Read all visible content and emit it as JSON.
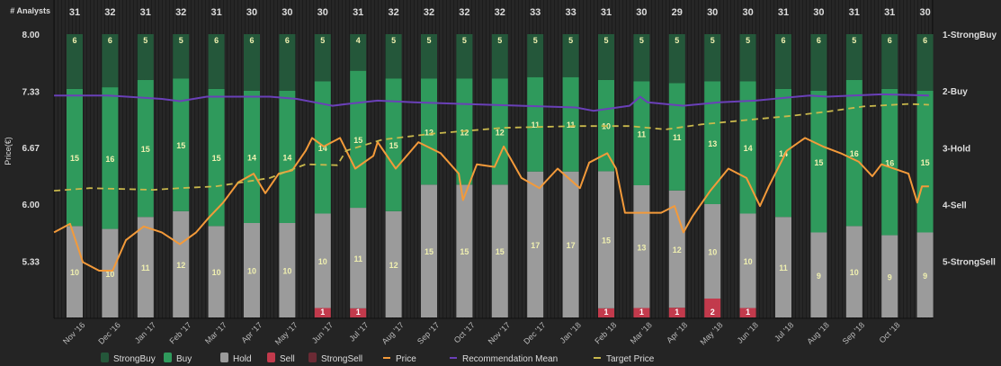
{
  "chart_data": {
    "type": "bar",
    "stacked": true,
    "title": "",
    "count_label": "# Analysts",
    "ylabel": "Price(€)",
    "ylim": [
      4.67,
      8.0
    ],
    "y_ticks": [
      "8.00",
      "7.33",
      "6.67",
      "6.00",
      "5.33"
    ],
    "y_tick_values": [
      8.0,
      7.33,
      6.67,
      6.0,
      5.33
    ],
    "right_axis_ticks": [
      "1-StrongBuy",
      "2-Buy",
      "3-Hold",
      "4-Sell",
      "5-StrongSell"
    ],
    "categories": [
      "Nov '16",
      "Dec '16",
      "Jan '17",
      "Feb '17",
      "Mar '17",
      "Apr '17",
      "May '17",
      "Jun '17",
      "Jul '17",
      "Aug '17",
      "Sep '17",
      "Oct '17",
      "Nov '17",
      "Dec '17",
      "Jan '18",
      "Feb '18",
      "Mar '18",
      "Apr '18",
      "May '18",
      "Jun '18",
      "Jul '18",
      "Aug '18",
      "Sep '18",
      "Oct '18",
      ""
    ],
    "analyst_counts": [
      31,
      32,
      31,
      32,
      31,
      30,
      30,
      30,
      31,
      32,
      32,
      32,
      32,
      33,
      33,
      31,
      30,
      29,
      30,
      30,
      31,
      30,
      31,
      31,
      30
    ],
    "series": [
      {
        "name": "StrongBuy",
        "color": "#24573a",
        "values": [
          6,
          6,
          5,
          5,
          6,
          6,
          6,
          5,
          4,
          5,
          5,
          5,
          5,
          5,
          5,
          5,
          5,
          5,
          5,
          5,
          6,
          6,
          5,
          6,
          6
        ]
      },
      {
        "name": "Buy",
        "color": "#2f9a5c",
        "values": [
          15,
          16,
          15,
          15,
          15,
          14,
          14,
          14,
          15,
          15,
          12,
          12,
          12,
          11,
          11,
          10,
          11,
          11,
          13,
          14,
          14,
          15,
          16,
          16,
          15
        ]
      },
      {
        "name": "Hold",
        "color": "#9b9b9b",
        "values": [
          10,
          10,
          11,
          12,
          10,
          10,
          10,
          10,
          11,
          12,
          15,
          15,
          15,
          17,
          17,
          15,
          13,
          12,
          10,
          10,
          11,
          9,
          10,
          9,
          9
        ]
      },
      {
        "name": "Sell",
        "color": "#c23a4c",
        "values": [
          0,
          0,
          0,
          0,
          0,
          0,
          0,
          1,
          1,
          0,
          0,
          0,
          0,
          0,
          0,
          1,
          1,
          1,
          2,
          1,
          0,
          0,
          0,
          0,
          0
        ]
      },
      {
        "name": "StrongSell",
        "color": "#6b2a34",
        "values": [
          0,
          0,
          0,
          0,
          0,
          0,
          0,
          0,
          0,
          0,
          0,
          0,
          0,
          0,
          0,
          0,
          0,
          0,
          0,
          0,
          0,
          0,
          0,
          0,
          0
        ]
      }
    ],
    "lines": [
      {
        "name": "Price",
        "color": "#f39a3a",
        "axis": "price",
        "dashed": false,
        "points": [
          [
            -0.58,
            5.67
          ],
          [
            -0.13,
            5.77
          ],
          [
            0.23,
            5.32
          ],
          [
            0.69,
            5.22
          ],
          [
            1.07,
            5.22
          ],
          [
            1.45,
            5.58
          ],
          [
            1.95,
            5.74
          ],
          [
            2.46,
            5.67
          ],
          [
            2.97,
            5.53
          ],
          [
            3.43,
            5.67
          ],
          [
            3.78,
            5.84
          ],
          [
            4.19,
            6.02
          ],
          [
            4.62,
            6.26
          ],
          [
            5.05,
            6.36
          ],
          [
            5.38,
            6.13
          ],
          [
            5.76,
            6.36
          ],
          [
            6.14,
            6.4
          ],
          [
            6.52,
            6.63
          ],
          [
            6.7,
            6.78
          ],
          [
            7.03,
            6.68
          ],
          [
            7.49,
            6.78
          ],
          [
            7.92,
            6.42
          ],
          [
            8.43,
            6.57
          ],
          [
            8.55,
            6.73
          ],
          [
            9.06,
            6.42
          ],
          [
            9.7,
            6.73
          ],
          [
            10.33,
            6.6
          ],
          [
            10.84,
            6.36
          ],
          [
            10.96,
            6.05
          ],
          [
            11.35,
            6.47
          ],
          [
            11.85,
            6.44
          ],
          [
            12.11,
            6.68
          ],
          [
            12.61,
            6.31
          ],
          [
            13.12,
            6.19
          ],
          [
            13.63,
            6.42
          ],
          [
            14.26,
            6.19
          ],
          [
            14.52,
            6.49
          ],
          [
            15.03,
            6.6
          ],
          [
            15.28,
            6.42
          ],
          [
            15.53,
            5.9
          ],
          [
            16.04,
            5.9
          ],
          [
            16.55,
            5.9
          ],
          [
            16.93,
            5.98
          ],
          [
            17.18,
            5.67
          ],
          [
            17.44,
            5.86
          ],
          [
            17.94,
            6.16
          ],
          [
            18.45,
            6.42
          ],
          [
            18.96,
            6.31
          ],
          [
            19.34,
            5.98
          ],
          [
            19.59,
            6.21
          ],
          [
            20.1,
            6.63
          ],
          [
            20.61,
            6.78
          ],
          [
            21.12,
            6.68
          ],
          [
            21.62,
            6.6
          ],
          [
            22.13,
            6.5
          ],
          [
            22.51,
            6.33
          ],
          [
            22.77,
            6.47
          ],
          [
            23.53,
            6.36
          ],
          [
            23.78,
            6.02
          ],
          [
            23.91,
            6.21
          ],
          [
            24.11,
            6.21
          ]
        ]
      },
      {
        "name": "Recommendation Mean",
        "color": "#6a40b8",
        "axis": "rating",
        "dashed": false,
        "points": [
          [
            -0.58,
            2.08
          ],
          [
            0.94,
            2.08
          ],
          [
            2.46,
            2.14
          ],
          [
            2.97,
            2.18
          ],
          [
            3.73,
            2.1
          ],
          [
            5.51,
            2.1
          ],
          [
            6.27,
            2.14
          ],
          [
            6.78,
            2.2
          ],
          [
            7.28,
            2.26
          ],
          [
            7.66,
            2.23
          ],
          [
            8.55,
            2.17
          ],
          [
            9.57,
            2.2
          ],
          [
            11.09,
            2.23
          ],
          [
            12.61,
            2.26
          ],
          [
            14.14,
            2.29
          ],
          [
            14.64,
            2.35
          ],
          [
            15.66,
            2.26
          ],
          [
            15.96,
            2.1
          ],
          [
            16.17,
            2.2
          ],
          [
            17.18,
            2.26
          ],
          [
            18.2,
            2.2
          ],
          [
            19.21,
            2.17
          ],
          [
            20.74,
            2.08
          ],
          [
            21.24,
            2.1
          ],
          [
            22.77,
            2.06
          ],
          [
            24.11,
            2.08
          ]
        ]
      },
      {
        "name": "Target Price",
        "color": "#c9b84c",
        "axis": "price",
        "dashed": true,
        "points": [
          [
            -0.58,
            6.16
          ],
          [
            0.43,
            6.19
          ],
          [
            2.21,
            6.17
          ],
          [
            2.97,
            6.19
          ],
          [
            3.98,
            6.21
          ],
          [
            4.75,
            6.26
          ],
          [
            5.51,
            6.31
          ],
          [
            6.52,
            6.47
          ],
          [
            7.41,
            6.46
          ],
          [
            7.66,
            6.63
          ],
          [
            8.68,
            6.76
          ],
          [
            10.08,
            6.83
          ],
          [
            12.11,
            6.9
          ],
          [
            14.14,
            6.92
          ],
          [
            15.66,
            6.92
          ],
          [
            16.68,
            6.88
          ],
          [
            17.69,
            6.94
          ],
          [
            18.96,
            6.99
          ],
          [
            20.23,
            7.04
          ],
          [
            21.24,
            7.09
          ],
          [
            22.26,
            7.15
          ],
          [
            23.53,
            7.18
          ],
          [
            24.11,
            7.17
          ]
        ]
      }
    ],
    "rating_range": [
      1,
      5
    ],
    "legend_position": "bottom",
    "legend": [
      "StrongBuy",
      "Buy",
      "Hold",
      "Sell",
      "StrongSell",
      "Price",
      "Recommendation Mean",
      "Target Price"
    ]
  }
}
